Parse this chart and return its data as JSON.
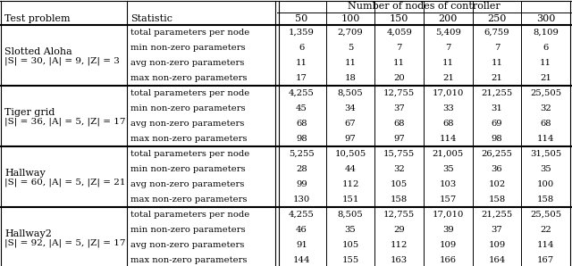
{
  "header_main": "Number of nodes of controller",
  "col_headers": [
    "50",
    "100",
    "150",
    "200",
    "250",
    "300"
  ],
  "col1_header": "Test problem",
  "col2_header": "Statistic",
  "sections": [
    {
      "problem_line1": "Slotted Aloha",
      "problem_line2": "|S| = 30, |A| = 9, |Z| = 3",
      "rows": [
        [
          "total parameters per node",
          "1,359",
          "2,709",
          "4,059",
          "5,409",
          "6,759",
          "8,109"
        ],
        [
          "min non-zero parameters",
          "6",
          "5",
          "7",
          "7",
          "7",
          "6"
        ],
        [
          "avg non-zero parameters",
          "11",
          "11",
          "11",
          "11",
          "11",
          "11"
        ],
        [
          "max non-zero parameters",
          "17",
          "18",
          "20",
          "21",
          "21",
          "21"
        ]
      ]
    },
    {
      "problem_line1": "Tiger grid",
      "problem_line2": "|S| = 36, |A| = 5, |Z| = 17",
      "rows": [
        [
          "total parameters per node",
          "4,255",
          "8,505",
          "12,755",
          "17,010",
          "21,255",
          "25,505"
        ],
        [
          "min non-zero parameters",
          "45",
          "34",
          "37",
          "33",
          "31",
          "32"
        ],
        [
          "avg non-zero parameters",
          "68",
          "67",
          "68",
          "68",
          "69",
          "68"
        ],
        [
          "max non-zero parameters",
          "98",
          "97",
          "97",
          "114",
          "98",
          "114"
        ]
      ]
    },
    {
      "problem_line1": "Hallway",
      "problem_line2": "|S| = 60, |A| = 5, |Z| = 21",
      "rows": [
        [
          "total parameters per node",
          "5,255",
          "10,505",
          "15,755",
          "21,005",
          "26,255",
          "31,505"
        ],
        [
          "min non-zero parameters",
          "28",
          "44",
          "32",
          "35",
          "36",
          "35"
        ],
        [
          "avg non-zero parameters",
          "99",
          "112",
          "105",
          "103",
          "102",
          "100"
        ],
        [
          "max non-zero parameters",
          "130",
          "151",
          "158",
          "157",
          "158",
          "158"
        ]
      ]
    },
    {
      "problem_line1": "Hallway2",
      "problem_line2": "|S| = 92, |A| = 5, |Z| = 17",
      "rows": [
        [
          "total parameters per node",
          "4,255",
          "8,505",
          "12,755",
          "17,010",
          "21,255",
          "25,505"
        ],
        [
          "min non-zero parameters",
          "46",
          "35",
          "29",
          "39",
          "37",
          "22"
        ],
        [
          "avg non-zero parameters",
          "91",
          "105",
          "112",
          "109",
          "109",
          "114"
        ],
        [
          "max non-zero parameters",
          "144",
          "155",
          "163",
          "166",
          "164",
          "167"
        ]
      ]
    }
  ],
  "bg_color": "#ffffff",
  "text_color": "#000000"
}
